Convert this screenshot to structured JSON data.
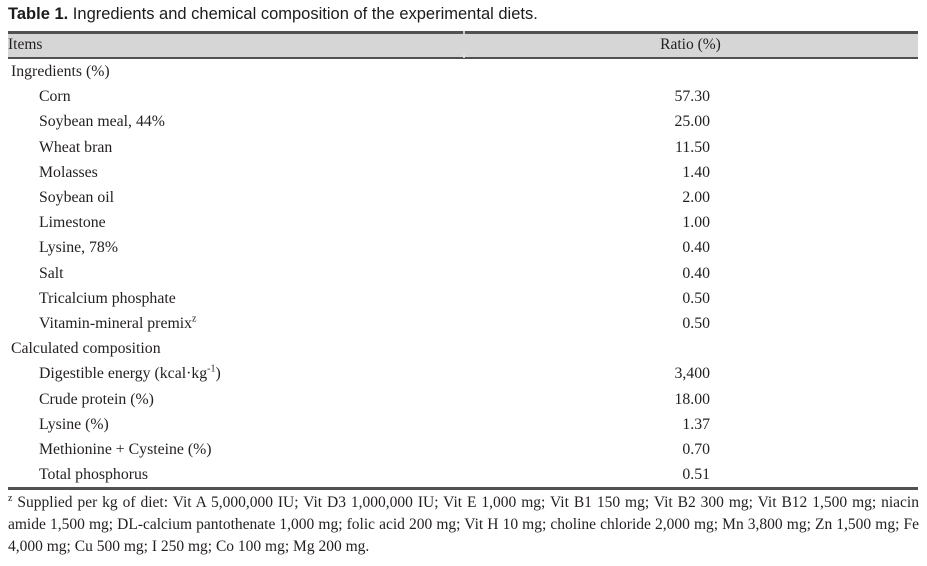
{
  "caption": {
    "label": "Table 1.",
    "text": " Ingredients and chemical composition of the experimental diets."
  },
  "colors": {
    "header_bg": "#d6d6d6",
    "border": "#515151",
    "text": "#231f20"
  },
  "table": {
    "columns": [
      "Items",
      "Ratio (%)"
    ],
    "rows": [
      {
        "item": "Ingredients (%)",
        "value": "",
        "indent": 0
      },
      {
        "item": "Corn",
        "value": "57.30",
        "indent": 1
      },
      {
        "item": "Soybean meal, 44%",
        "value": "25.00",
        "indent": 1
      },
      {
        "item": "Wheat bran",
        "value": "11.50",
        "indent": 1
      },
      {
        "item": "Molasses",
        "value": "1.40",
        "indent": 1
      },
      {
        "item": "Soybean oil",
        "value": "2.00",
        "indent": 1
      },
      {
        "item": "Limestone",
        "value": "1.00",
        "indent": 1
      },
      {
        "item": "Lysine, 78%",
        "value": "0.40",
        "indent": 1
      },
      {
        "item": "Salt",
        "value": "0.40",
        "indent": 1
      },
      {
        "item": "Tricalcium phosphate",
        "value": "0.50",
        "indent": 1
      },
      {
        "item": "Vitamin-mineral premix",
        "sup": "z",
        "value": "0.50",
        "indent": 1
      },
      {
        "item": "Calculated composition",
        "value": "",
        "indent": 0
      },
      {
        "item": "Digestible energy (kcal·kg",
        "sup": "-1",
        "after": ")",
        "value": "3,400",
        "indent": 1
      },
      {
        "item": "Crude protein (%)",
        "value": "18.00",
        "indent": 1
      },
      {
        "item": "Lysine (%)",
        "value": "1.37",
        "indent": 1
      },
      {
        "item": "Methionine + Cysteine (%)",
        "value": "0.70",
        "indent": 1
      },
      {
        "item": "Total phosphorus",
        "value": "0.51",
        "indent": 1
      }
    ]
  },
  "footnote": {
    "sup": "z",
    "text": " Supplied per kg of diet: Vit A 5,000,000 IU; Vit D3 1,000,000 IU; Vit E 1,000 mg; Vit B1 150 mg; Vit B2 300 mg; Vit B12 1,500 mg; niacin amide 1,500 mg; DL-calcium pantothenate 1,000 mg; folic acid 200 mg; Vit H 10 mg; choline chloride 2,000 mg; Mn 3,800 mg; Zn 1,500 mg; Fe 4,000 mg; Cu 500 mg; I 250 mg; Co 100 mg; Mg 200 mg."
  }
}
